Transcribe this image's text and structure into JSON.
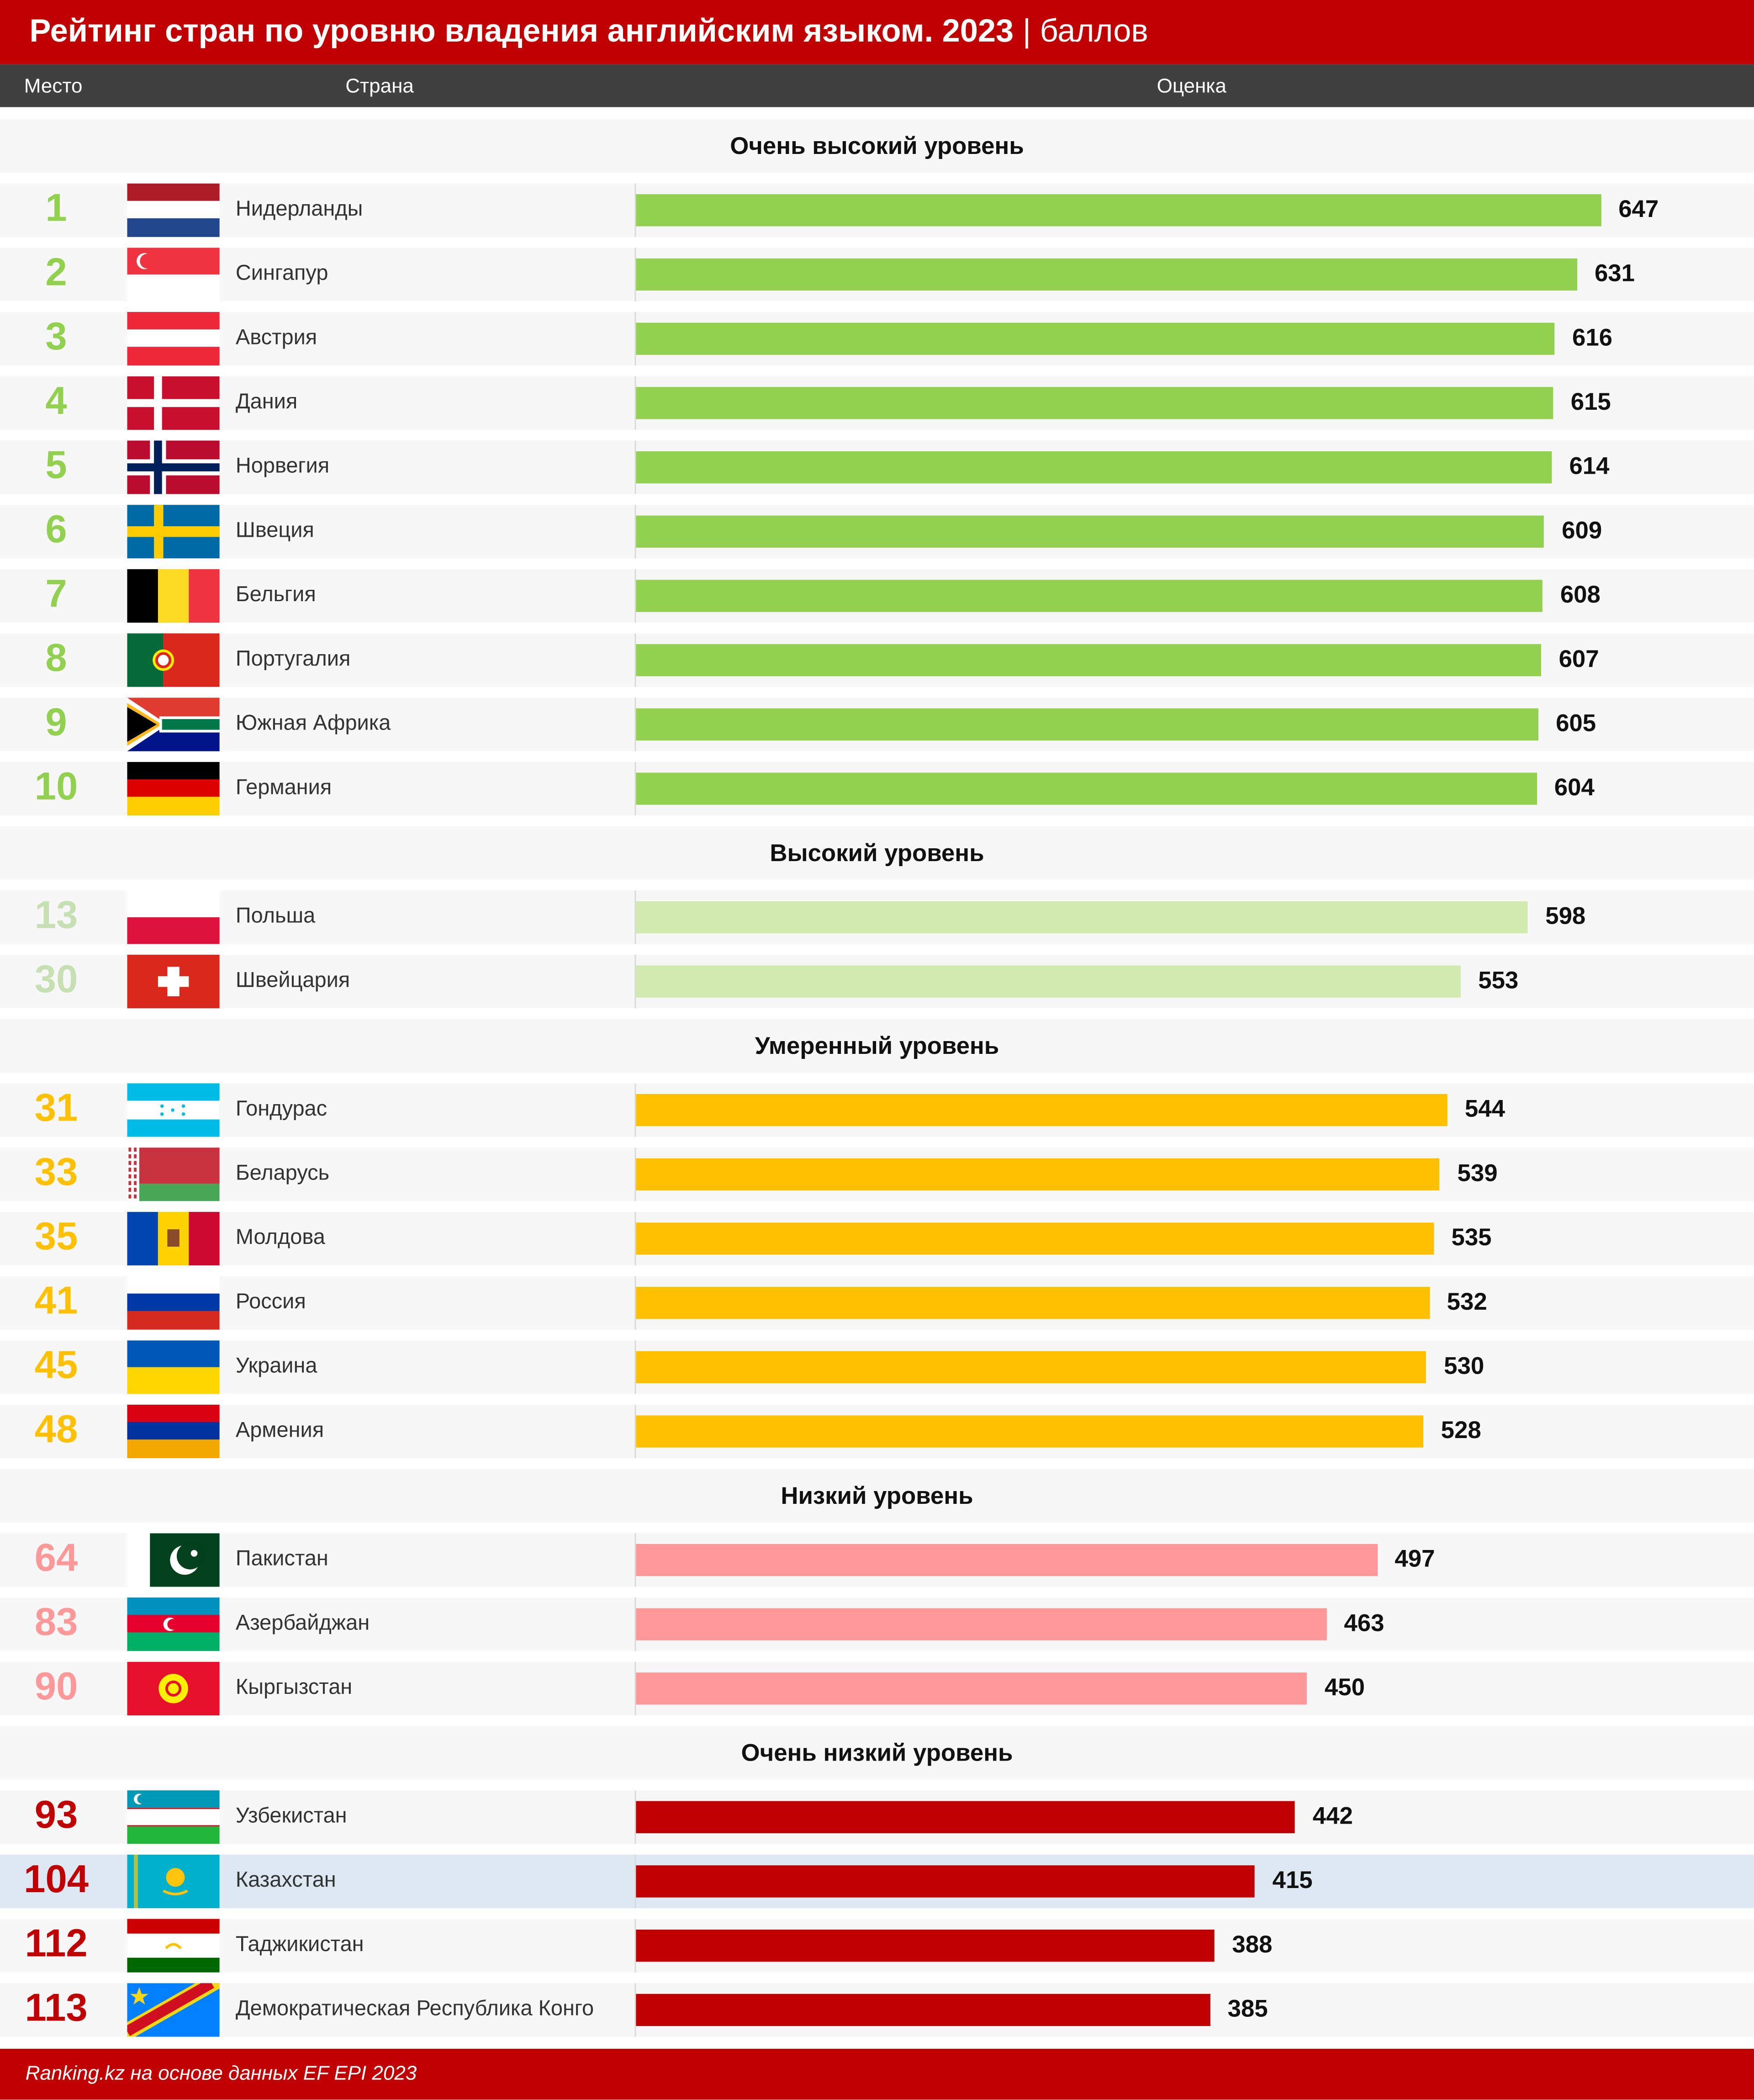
{
  "title": "Рейтинг стран по уровню владения английским языком. 2023",
  "unit": "| баллов",
  "columns": {
    "rank": "Место",
    "country": "Страна",
    "score": "Оценка"
  },
  "footer": "Ranking.kz на основе данных EF EPI 2023",
  "colors": {
    "very_high": "#92d050",
    "high": "#d0eab0",
    "moderate": "#ffc000",
    "low": "#ff9999",
    "very_low": "#c00000",
    "highlight": "#dde8f3"
  },
  "chart_data": {
    "type": "bar",
    "title": "Рейтинг стран по уровню владения английским языком. 2023",
    "xlabel": "Оценка",
    "ylabel": "Страна",
    "xlim": [
      0,
      647
    ],
    "sections": [
      {
        "name": "Очень высокий уровень",
        "level": "very_high",
        "rows": [
          {
            "rank": "1",
            "country": "Нидерланды",
            "value": 647,
            "flag": "nl"
          },
          {
            "rank": "2",
            "country": "Сингапур",
            "value": 631,
            "flag": "sg"
          },
          {
            "rank": "3",
            "country": "Австрия",
            "value": 616,
            "flag": "at"
          },
          {
            "rank": "4",
            "country": "Дания",
            "value": 615,
            "flag": "dk"
          },
          {
            "rank": "5",
            "country": "Норвегия",
            "value": 614,
            "flag": "no"
          },
          {
            "rank": "6",
            "country": "Швеция",
            "value": 609,
            "flag": "se"
          },
          {
            "rank": "7",
            "country": "Бельгия",
            "value": 608,
            "flag": "be"
          },
          {
            "rank": "8",
            "country": "Португалия",
            "value": 607,
            "flag": "pt"
          },
          {
            "rank": "9",
            "country": "Южная Африка",
            "value": 605,
            "flag": "za"
          },
          {
            "rank": "10",
            "country": "Германия",
            "value": 604,
            "flag": "de"
          }
        ]
      },
      {
        "name": "Высокий уровень",
        "level": "high",
        "rows": [
          {
            "rank": "13",
            "country": "Польша",
            "value": 598,
            "flag": "pl"
          },
          {
            "rank": "30",
            "country": "Швейцария",
            "value": 553,
            "flag": "ch"
          }
        ]
      },
      {
        "name": "Умеренный уровень",
        "level": "moderate",
        "rows": [
          {
            "rank": "31",
            "country": "Гондурас",
            "value": 544,
            "flag": "hn"
          },
          {
            "rank": "33",
            "country": "Беларусь",
            "value": 539,
            "flag": "by"
          },
          {
            "rank": "35",
            "country": "Молдова",
            "value": 535,
            "flag": "md"
          },
          {
            "rank": "41",
            "country": "Россия",
            "value": 532,
            "flag": "ru"
          },
          {
            "rank": "45",
            "country": "Украина",
            "value": 530,
            "flag": "ua"
          },
          {
            "rank": "48",
            "country": "Армения",
            "value": 528,
            "flag": "am"
          }
        ]
      },
      {
        "name": "Низкий уровень",
        "level": "low",
        "rows": [
          {
            "rank": "64",
            "country": "Пакистан",
            "value": 497,
            "flag": "pk"
          },
          {
            "rank": "83",
            "country": "Азербайджан",
            "value": 463,
            "flag": "az"
          },
          {
            "rank": "90",
            "country": "Кыргызстан",
            "value": 450,
            "flag": "kg"
          }
        ]
      },
      {
        "name": "Очень низкий уровень",
        "level": "very_low",
        "rows": [
          {
            "rank": "93",
            "country": "Узбекистан",
            "value": 442,
            "flag": "uz"
          },
          {
            "rank": "104",
            "country": "Казахстан",
            "value": 415,
            "flag": "kz",
            "highlight": true
          },
          {
            "rank": "112",
            "country": "Таджикистан",
            "value": 388,
            "flag": "tj"
          },
          {
            "rank": "113",
            "country": "Демократическая Республика Конго",
            "value": 385,
            "flag": "cd"
          }
        ]
      }
    ]
  }
}
